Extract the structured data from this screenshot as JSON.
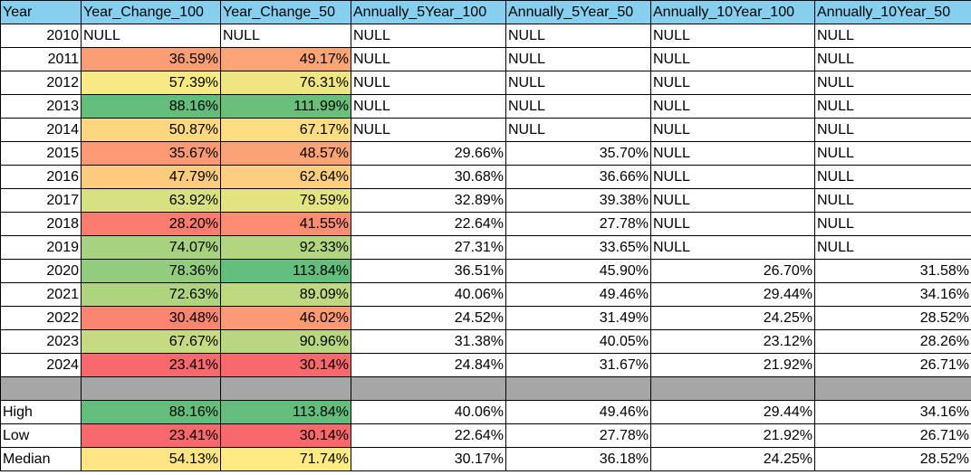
{
  "headers": [
    "Year",
    "Year_Change_100",
    "Year_Change_50",
    "Annually_5Year_100",
    "Annually_5Year_50",
    "Annually_10Year_100",
    "Annually_10Year_50"
  ],
  "rows": [
    {
      "year": "2010",
      "c100": "NULL",
      "c50": "NULL",
      "a5_100": "NULL",
      "a5_50": "NULL",
      "a10_100": "NULL",
      "a10_50": "NULL"
    },
    {
      "year": "2011",
      "c100": "36.59%",
      "c50": "49.17%",
      "a5_100": "NULL",
      "a5_50": "NULL",
      "a10_100": "NULL",
      "a10_50": "NULL"
    },
    {
      "year": "2012",
      "c100": "57.39%",
      "c50": "76.31%",
      "a5_100": "NULL",
      "a5_50": "NULL",
      "a10_100": "NULL",
      "a10_50": "NULL"
    },
    {
      "year": "2013",
      "c100": "88.16%",
      "c50": "111.99%",
      "a5_100": "NULL",
      "a5_50": "NULL",
      "a10_100": "NULL",
      "a10_50": "NULL"
    },
    {
      "year": "2014",
      "c100": "50.87%",
      "c50": "67.17%",
      "a5_100": "NULL",
      "a5_50": "NULL",
      "a10_100": "NULL",
      "a10_50": "NULL"
    },
    {
      "year": "2015",
      "c100": "35.67%",
      "c50": "48.57%",
      "a5_100": "29.66%",
      "a5_50": "35.70%",
      "a10_100": "NULL",
      "a10_50": "NULL"
    },
    {
      "year": "2016",
      "c100": "47.79%",
      "c50": "62.64%",
      "a5_100": "30.68%",
      "a5_50": "36.66%",
      "a10_100": "NULL",
      "a10_50": "NULL"
    },
    {
      "year": "2017",
      "c100": "63.92%",
      "c50": "79.59%",
      "a5_100": "32.89%",
      "a5_50": "39.38%",
      "a10_100": "NULL",
      "a10_50": "NULL"
    },
    {
      "year": "2018",
      "c100": "28.20%",
      "c50": "41.55%",
      "a5_100": "22.64%",
      "a5_50": "27.78%",
      "a10_100": "NULL",
      "a10_50": "NULL"
    },
    {
      "year": "2019",
      "c100": "74.07%",
      "c50": "92.33%",
      "a5_100": "27.31%",
      "a5_50": "33.65%",
      "a10_100": "NULL",
      "a10_50": "NULL"
    },
    {
      "year": "2020",
      "c100": "78.36%",
      "c50": "113.84%",
      "a5_100": "36.51%",
      "a5_50": "45.90%",
      "a10_100": "26.70%",
      "a10_50": "31.58%"
    },
    {
      "year": "2021",
      "c100": "72.63%",
      "c50": "89.09%",
      "a5_100": "40.06%",
      "a5_50": "49.46%",
      "a10_100": "29.44%",
      "a10_50": "34.16%"
    },
    {
      "year": "2022",
      "c100": "30.48%",
      "c50": "46.02%",
      "a5_100": "24.52%",
      "a5_50": "31.49%",
      "a10_100": "24.25%",
      "a10_50": "28.52%"
    },
    {
      "year": "2023",
      "c100": "67.67%",
      "c50": "90.96%",
      "a5_100": "31.38%",
      "a5_50": "40.05%",
      "a10_100": "23.12%",
      "a10_50": "28.26%"
    },
    {
      "year": "2024",
      "c100": "23.41%",
      "c50": "30.14%",
      "a5_100": "24.84%",
      "a5_50": "31.67%",
      "a10_100": "21.92%",
      "a10_50": "26.71%"
    }
  ],
  "summary": [
    {
      "label": "High",
      "c100": "88.16%",
      "c50": "113.84%",
      "a5_100": "40.06%",
      "a5_50": "49.46%",
      "a10_100": "29.44%",
      "a10_50": "34.16%"
    },
    {
      "label": "Low",
      "c100": "23.41%",
      "c50": "30.14%",
      "a5_100": "22.64%",
      "a5_50": "27.78%",
      "a10_100": "21.92%",
      "a10_50": "26.71%"
    },
    {
      "label": "Median",
      "c100": "54.13%",
      "c50": "71.74%",
      "a5_100": "30.17%",
      "a5_50": "36.18%",
      "a10_100": "24.25%",
      "a10_50": "28.52%"
    }
  ],
  "colors": {
    "header_bg": "#87cfef",
    "separator_bg": "#a6a6a6",
    "color_scale": [
      "#f8696b",
      "#ffeb84",
      "#63be7b"
    ]
  }
}
